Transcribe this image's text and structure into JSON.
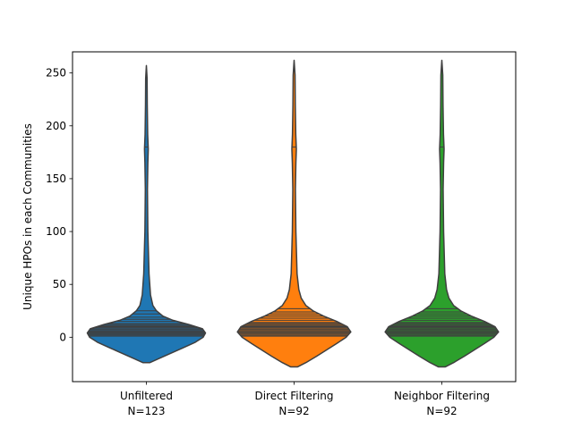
{
  "chart_data": {
    "type": "violin",
    "title": "",
    "xlabel": "",
    "ylabel": "Unique HPOs in each Communities",
    "ylim": [
      -42,
      270
    ],
    "yticks": [
      0,
      50,
      100,
      150,
      200,
      250
    ],
    "grid": false,
    "inner": "stick",
    "categories": [
      {
        "name": "Unfiltered",
        "count_label": "N=123",
        "color": "#1f77b4"
      },
      {
        "name": "Direct Filtering",
        "count_label": "N=92",
        "color": "#ff7f0e"
      },
      {
        "name": "Neighbor Filtering",
        "count_label": "N=92",
        "color": "#2ca02c"
      }
    ],
    "violins": [
      {
        "category": "Unfiltered",
        "min_extent": -24,
        "max_extent": 257,
        "density": [
          {
            "y": -24,
            "w": 0.06
          },
          {
            "y": -20,
            "w": 0.22
          },
          {
            "y": -15,
            "w": 0.42
          },
          {
            "y": -10,
            "w": 0.62
          },
          {
            "y": -5,
            "w": 0.82
          },
          {
            "y": 0,
            "w": 0.96
          },
          {
            "y": 4,
            "w": 1.0
          },
          {
            "y": 8,
            "w": 0.95
          },
          {
            "y": 12,
            "w": 0.72
          },
          {
            "y": 16,
            "w": 0.45
          },
          {
            "y": 20,
            "w": 0.28
          },
          {
            "y": 25,
            "w": 0.17
          },
          {
            "y": 30,
            "w": 0.11
          },
          {
            "y": 40,
            "w": 0.07
          },
          {
            "y": 60,
            "w": 0.045
          },
          {
            "y": 100,
            "w": 0.025
          },
          {
            "y": 140,
            "w": 0.018
          },
          {
            "y": 165,
            "w": 0.025
          },
          {
            "y": 178,
            "w": 0.032
          },
          {
            "y": 192,
            "w": 0.022
          },
          {
            "y": 220,
            "w": 0.015
          },
          {
            "y": 245,
            "w": 0.012
          },
          {
            "y": 257,
            "w": 0.0
          }
        ],
        "observations": [
          1,
          2,
          3,
          3,
          4,
          5,
          5,
          6,
          7,
          8,
          9,
          10,
          11,
          12,
          13,
          15,
          17,
          19,
          22,
          25,
          180,
          250
        ]
      },
      {
        "category": "Direct Filtering",
        "min_extent": -28,
        "max_extent": 262,
        "density": [
          {
            "y": -28,
            "w": 0.06
          },
          {
            "y": -24,
            "w": 0.2
          },
          {
            "y": -18,
            "w": 0.38
          },
          {
            "y": -12,
            "w": 0.55
          },
          {
            "y": -6,
            "w": 0.72
          },
          {
            "y": 0,
            "w": 0.88
          },
          {
            "y": 5,
            "w": 0.96
          },
          {
            "y": 10,
            "w": 0.9
          },
          {
            "y": 15,
            "w": 0.72
          },
          {
            "y": 20,
            "w": 0.5
          },
          {
            "y": 25,
            "w": 0.32
          },
          {
            "y": 30,
            "w": 0.2
          },
          {
            "y": 37,
            "w": 0.12
          },
          {
            "y": 45,
            "w": 0.08
          },
          {
            "y": 60,
            "w": 0.05
          },
          {
            "y": 100,
            "w": 0.03
          },
          {
            "y": 140,
            "w": 0.022
          },
          {
            "y": 165,
            "w": 0.03
          },
          {
            "y": 178,
            "w": 0.038
          },
          {
            "y": 192,
            "w": 0.028
          },
          {
            "y": 220,
            "w": 0.02
          },
          {
            "y": 248,
            "w": 0.016
          },
          {
            "y": 262,
            "w": 0.0
          }
        ],
        "observations": [
          1,
          2,
          3,
          4,
          5,
          6,
          7,
          8,
          9,
          10,
          11,
          12,
          13,
          14,
          16,
          18,
          20,
          22,
          24,
          27,
          180,
          255
        ]
      },
      {
        "category": "Neighbor Filtering",
        "min_extent": -28,
        "max_extent": 262,
        "density": [
          {
            "y": -28,
            "w": 0.06
          },
          {
            "y": -24,
            "w": 0.2
          },
          {
            "y": -18,
            "w": 0.38
          },
          {
            "y": -12,
            "w": 0.55
          },
          {
            "y": -6,
            "w": 0.72
          },
          {
            "y": 0,
            "w": 0.88
          },
          {
            "y": 5,
            "w": 0.96
          },
          {
            "y": 10,
            "w": 0.9
          },
          {
            "y": 15,
            "w": 0.72
          },
          {
            "y": 20,
            "w": 0.5
          },
          {
            "y": 25,
            "w": 0.32
          },
          {
            "y": 30,
            "w": 0.2
          },
          {
            "y": 37,
            "w": 0.12
          },
          {
            "y": 45,
            "w": 0.08
          },
          {
            "y": 60,
            "w": 0.05
          },
          {
            "y": 100,
            "w": 0.03
          },
          {
            "y": 140,
            "w": 0.022
          },
          {
            "y": 165,
            "w": 0.03
          },
          {
            "y": 178,
            "w": 0.038
          },
          {
            "y": 192,
            "w": 0.028
          },
          {
            "y": 220,
            "w": 0.02
          },
          {
            "y": 248,
            "w": 0.016
          },
          {
            "y": 262,
            "w": 0.0
          }
        ],
        "observations": [
          1,
          2,
          3,
          4,
          5,
          6,
          7,
          8,
          9,
          10,
          11,
          12,
          13,
          14,
          16,
          18,
          20,
          22,
          24,
          27,
          180,
          255
        ]
      }
    ]
  }
}
